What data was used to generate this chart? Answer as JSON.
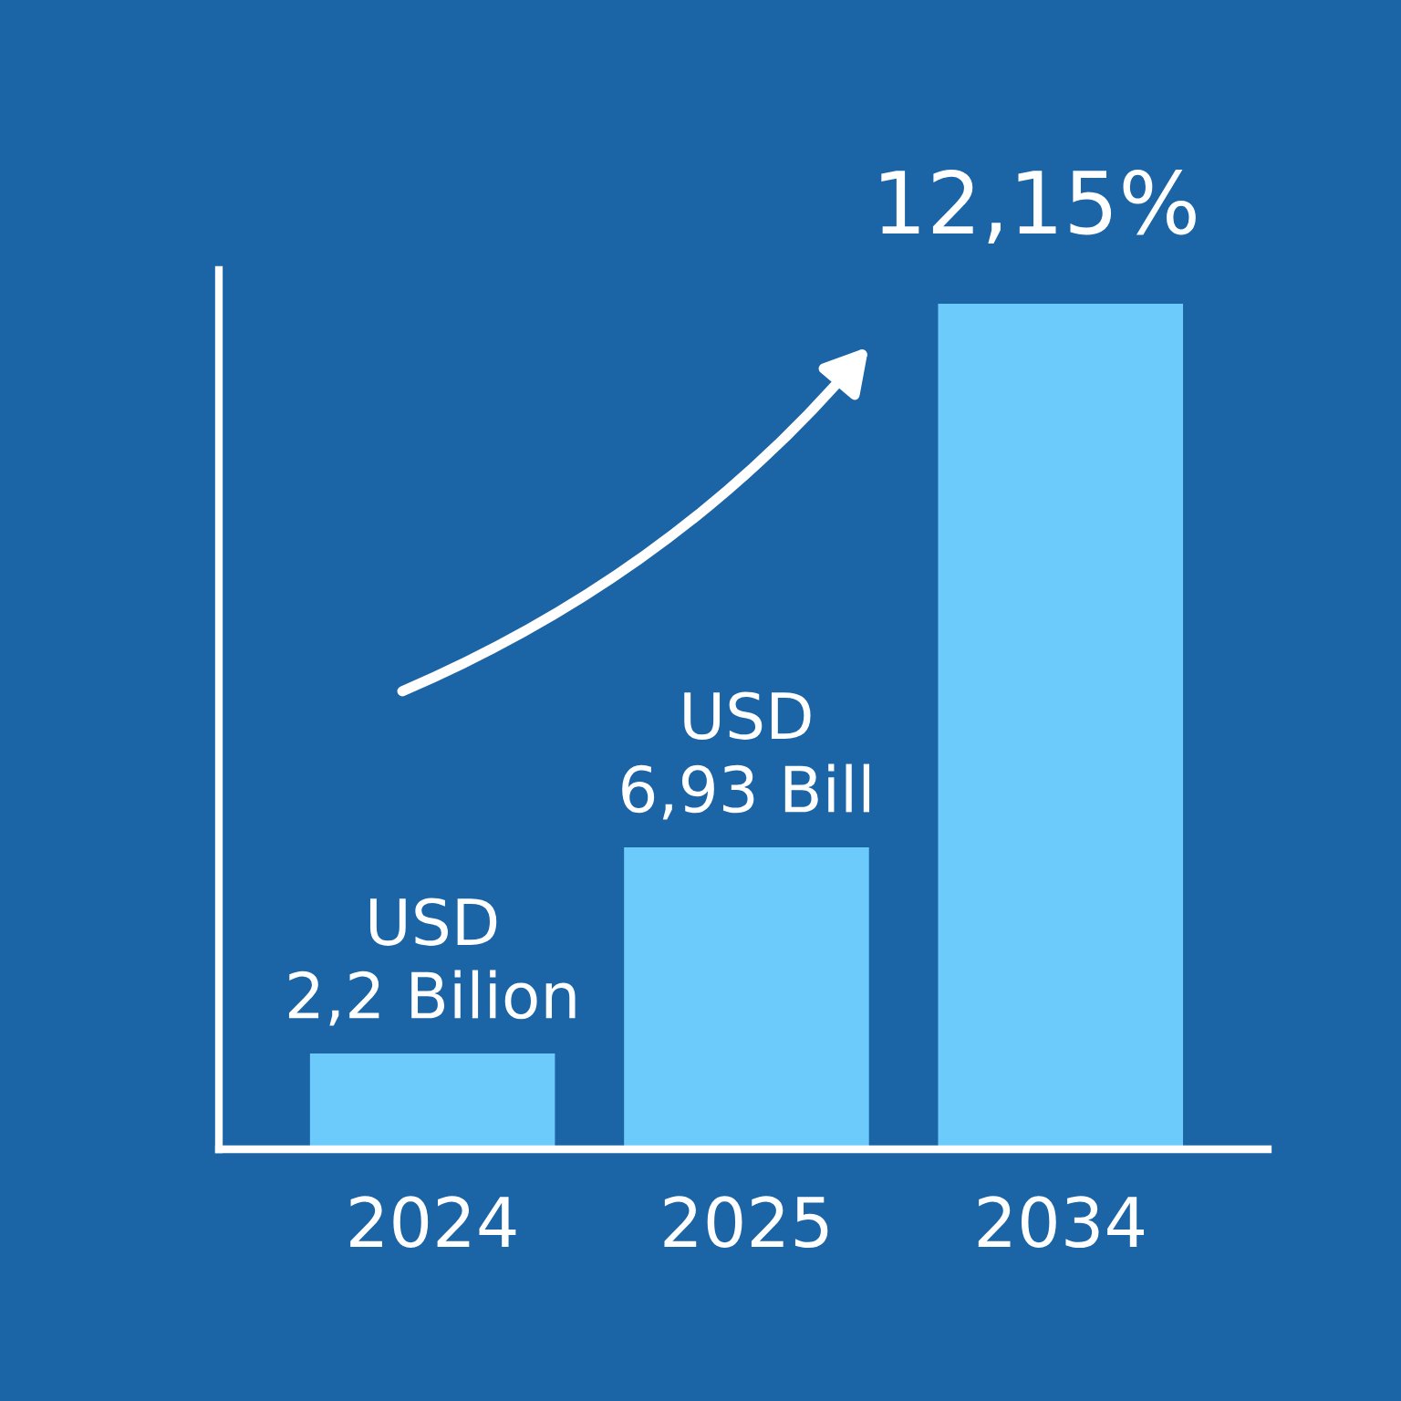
{
  "chart_data": {
    "type": "bar",
    "categories": [
      "2024",
      "2025",
      "2034"
    ],
    "values": [
      2.2,
      6.93,
      19.4
    ],
    "color": "#6ccbfb",
    "value_labels": [
      "USD\n2,2 Bilion",
      "USD\n6,93 Bill",
      null
    ],
    "annotations": [
      "12,15%"
    ],
    "grid": false,
    "legend": false
  }
}
